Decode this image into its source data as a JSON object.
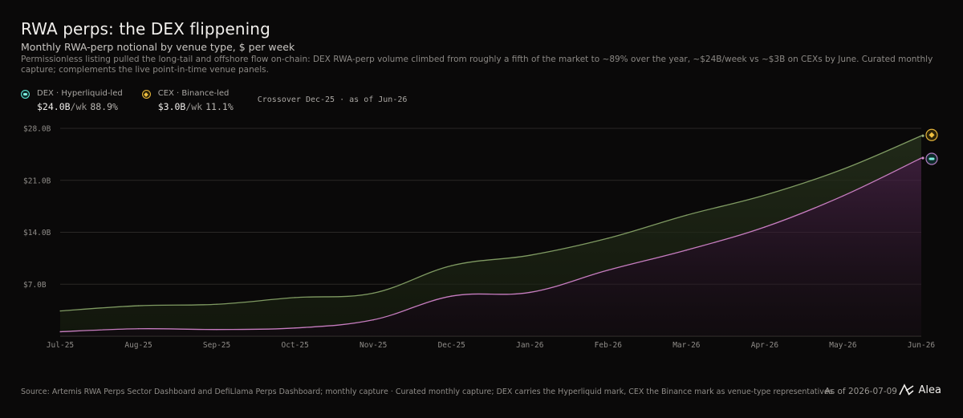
{
  "header": {
    "title": "RWA perps: the DEX flippening",
    "subtitle": "Monthly RWA-perp notional by venue type, $ per week",
    "description": "Permissionless listing pulled the long-tail and offshore flow on-chain: DEX RWA-perp volume climbed from roughly a fifth of the market to ~89% over the year, ~$24B/week vs ~$3B on CEXs by June. Curated monthly capture; complements the live point-in-time venue panels."
  },
  "legend": {
    "dex": {
      "name": "DEX · Hyperliquid-led",
      "value": "$24.0B",
      "unit": "/wk",
      "pct": "88.9%",
      "icon": "hyperliquid-icon"
    },
    "cex": {
      "name": "CEX · Binance-led",
      "value": "$3.0B",
      "unit": "/wk",
      "pct": "11.1%",
      "icon": "binance-icon"
    },
    "crossover": "Crossover Dec-25 · as of Jun-26"
  },
  "colors": {
    "dex_line": "#c77dc0",
    "total_line": "#7f9a62",
    "dex_fill": "#3a1f3b",
    "cex_fill": "#1c2416",
    "grid": "#2a2826",
    "axis_text": "#8f8c88"
  },
  "chart_data": {
    "type": "area",
    "x": [
      "Jul-25",
      "Aug-25",
      "Sep-25",
      "Oct-25",
      "Nov-25",
      "Dec-25",
      "Jan-26",
      "Feb-26",
      "Mar-26",
      "Apr-26",
      "May-26",
      "Jun-26"
    ],
    "ylim": [
      0,
      28
    ],
    "yticks": [
      {
        "value": 7,
        "label": "$7.0B"
      },
      {
        "value": 14,
        "label": "$14.0B"
      },
      {
        "value": 21,
        "label": "$21.0B"
      },
      {
        "value": 28,
        "label": "$28.0B"
      }
    ],
    "grid": true,
    "stacked": true,
    "series": [
      {
        "name": "DEX",
        "values": [
          0.6,
          1.0,
          0.9,
          1.1,
          2.2,
          5.4,
          5.9,
          8.9,
          11.6,
          14.7,
          18.9,
          24.0
        ]
      },
      {
        "name": "CEX",
        "values": [
          2.8,
          3.1,
          3.4,
          4.1,
          3.6,
          4.1,
          5.0,
          4.3,
          4.7,
          4.3,
          3.6,
          3.0
        ]
      }
    ]
  },
  "footer": {
    "source": "Source: Artemis RWA Perps Sector Dashboard and DefiLlama Perps Dashboard; monthly capture · Curated monthly capture; DEX carries the Hyperliquid mark, CEX the Binance mark as venue-type representatives",
    "as_of": "As of 2026-07-09",
    "brand": "Alea"
  }
}
